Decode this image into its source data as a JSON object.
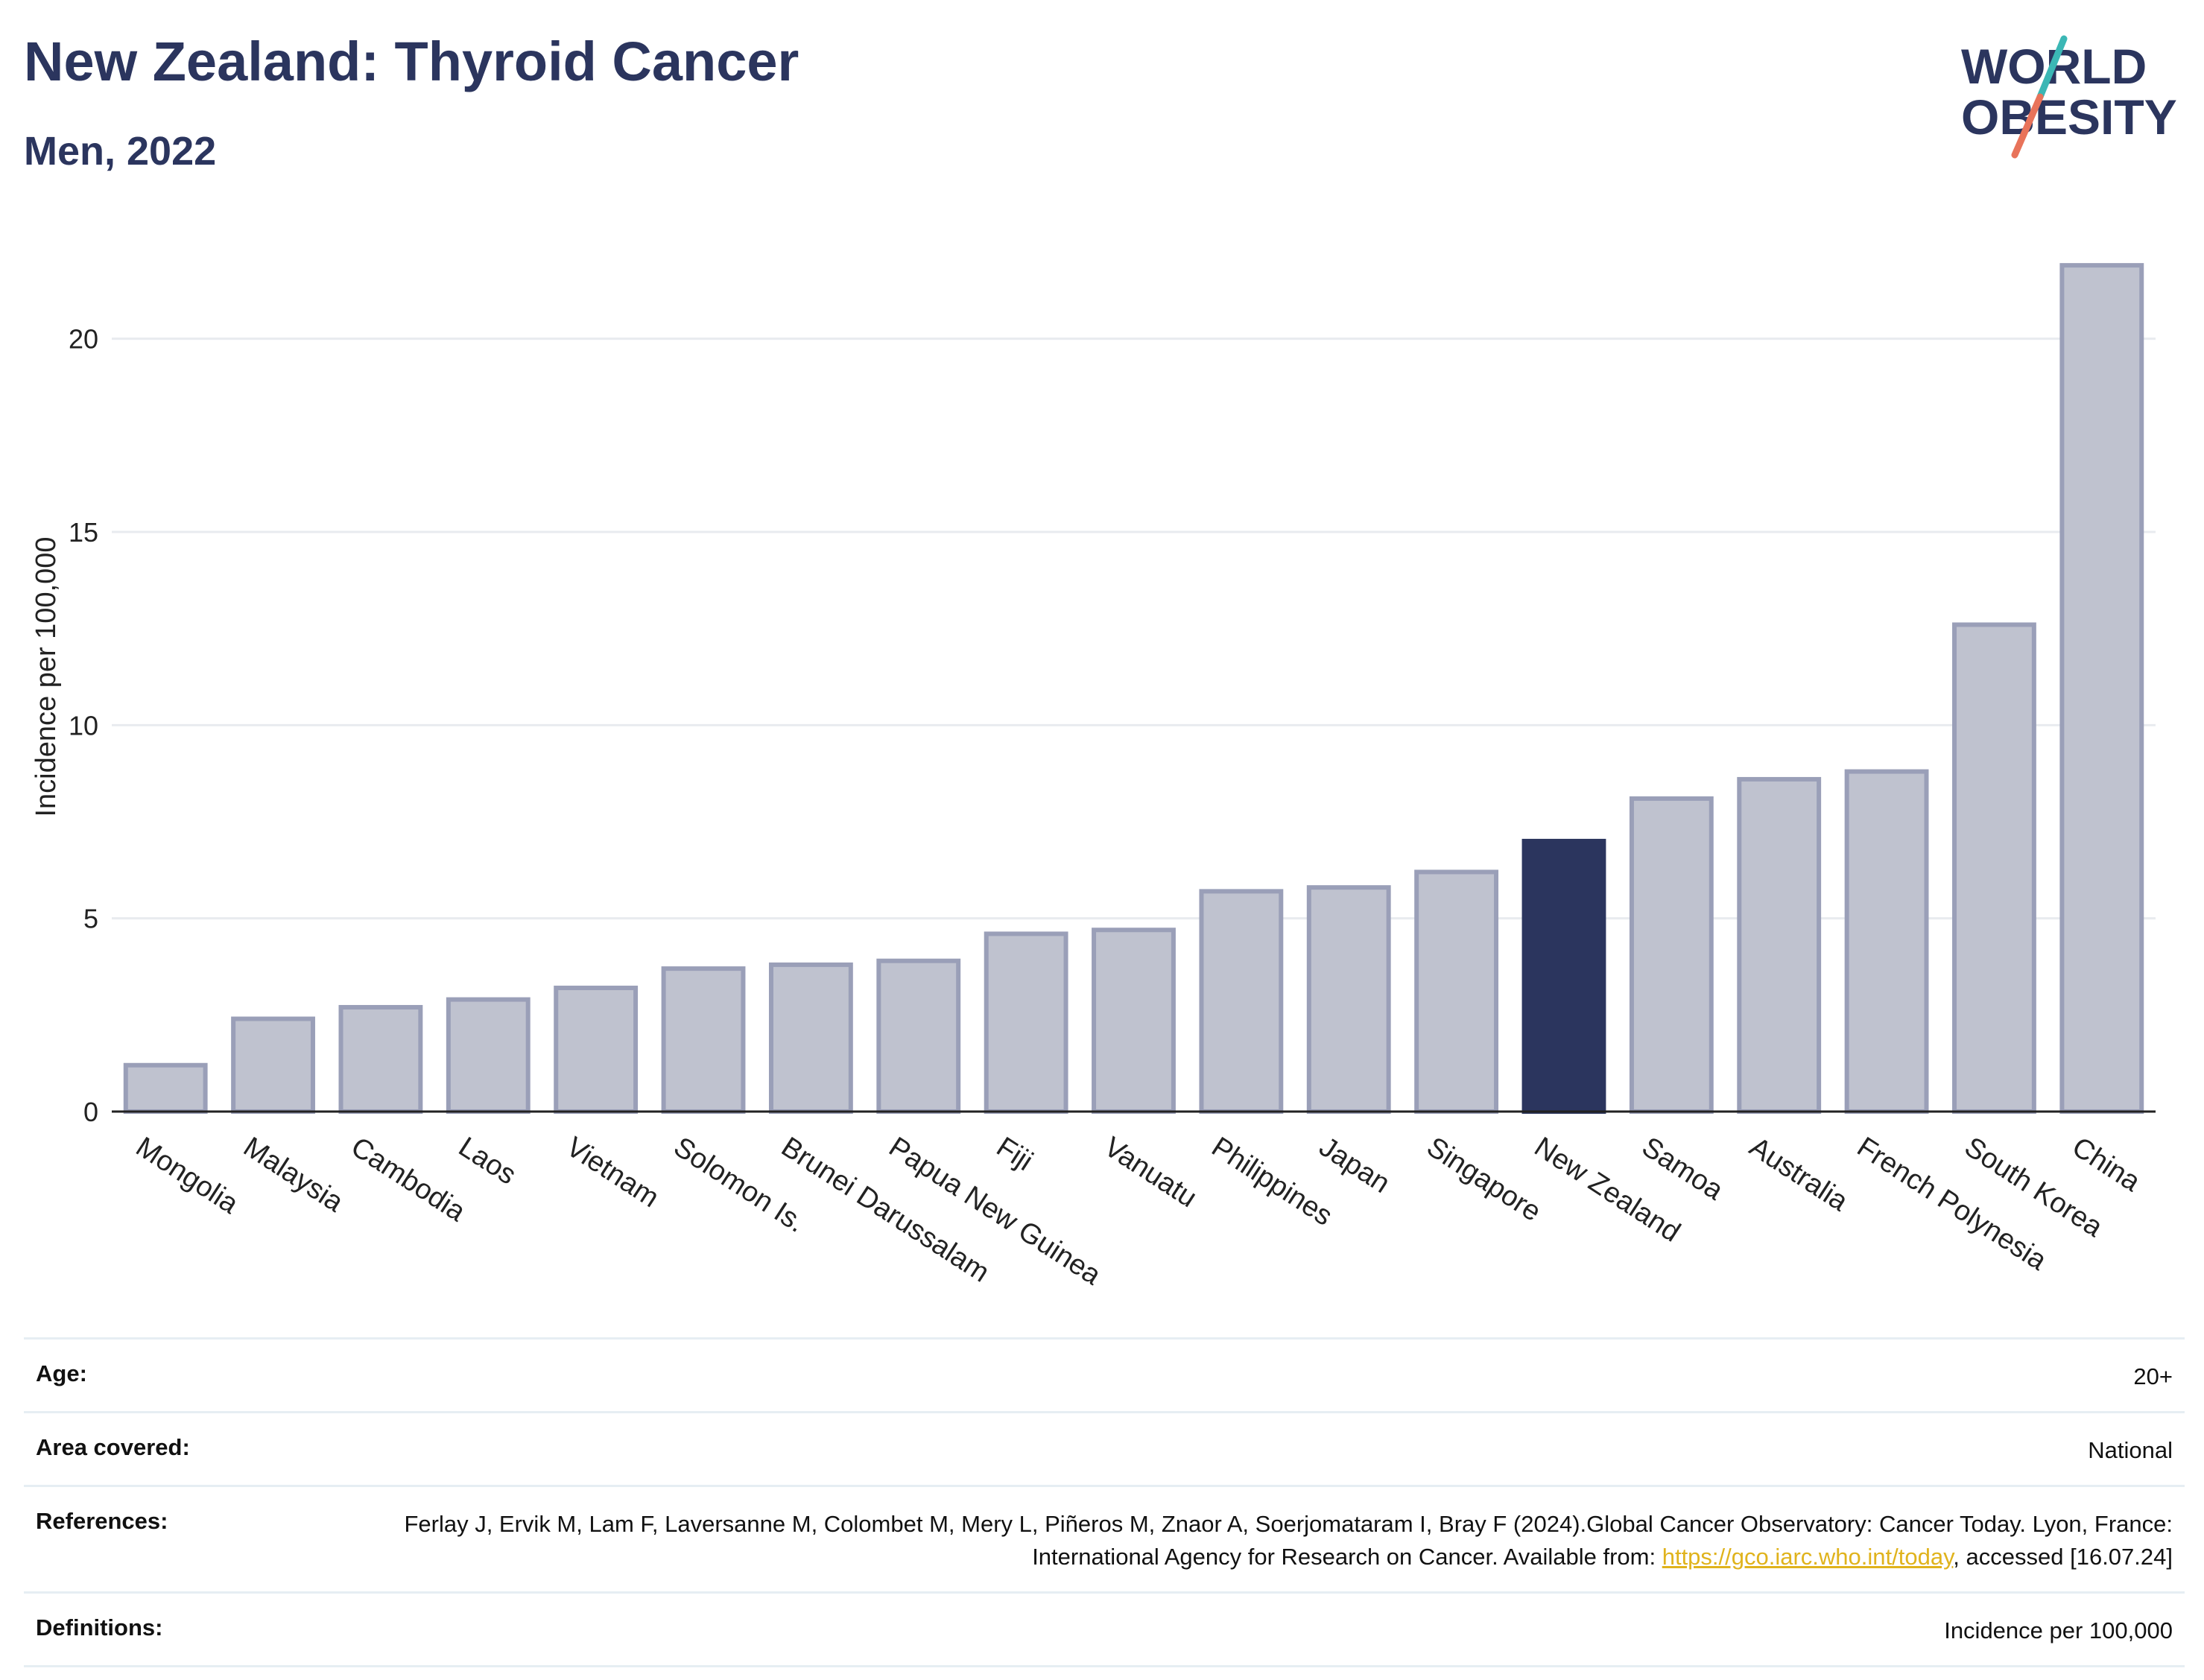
{
  "header": {
    "title": "New Zealand: Thyroid Cancer",
    "subtitle": "Men, 2022"
  },
  "logo": {
    "line1": "WORLD",
    "line2": "OBESITY",
    "text_color": "#2b355e",
    "slash_colors": [
      "#3bb7b5",
      "#e8735a"
    ]
  },
  "chart_data": {
    "type": "bar",
    "categories": [
      "Mongolia",
      "Malaysia",
      "Cambodia",
      "Laos",
      "Vietnam",
      "Solomon Is.",
      "Brunei Darussalam",
      "Papua New Guinea",
      "Fiji",
      "Vanuatu",
      "Philippines",
      "Japan",
      "Singapore",
      "New Zealand",
      "Samoa",
      "Australia",
      "French Polynesia",
      "South Korea",
      "China"
    ],
    "values": [
      1.2,
      2.4,
      2.7,
      2.9,
      3.2,
      3.7,
      3.8,
      3.9,
      4.6,
      4.7,
      5.7,
      5.8,
      6.2,
      7.0,
      8.1,
      8.6,
      8.8,
      12.6,
      21.9
    ],
    "highlight": "New Zealand",
    "title": "New Zealand: Thyroid Cancer",
    "subtitle": "Men, 2022",
    "xlabel": "",
    "ylabel": "Incidence per 100,000",
    "ylim": [
      0,
      22.5
    ],
    "yticks": [
      0,
      5,
      10,
      15,
      20
    ],
    "grid": true,
    "colors": {
      "bar": "#bfc2cf",
      "bar_edge": "#9a9fb8",
      "highlight": "#2b355e",
      "grid": "#e8ebef",
      "axis": "#222222"
    }
  },
  "meta": {
    "age_label": "Age:",
    "age_value": "20+",
    "area_label": "Area covered:",
    "area_value": "National",
    "references_label": "References:",
    "references_text": "Ferlay J, Ervik M, Lam F, Laversanne M, Colombet M, Mery L, Piñeros M, Znaor A, Soerjomataram I, Bray F (2024).Global Cancer Observatory: Cancer Today. Lyon, France: International Agency for Research on Cancer. Available from: ",
    "references_link": "https://gco.iarc.who.int/today",
    "references_suffix": ", accessed [16.07.24]",
    "definitions_label": "Definitions:",
    "definitions_value": "Incidence per 100,000"
  }
}
